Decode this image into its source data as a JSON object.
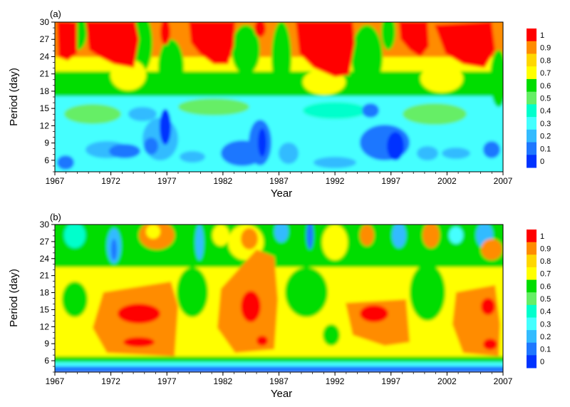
{
  "chart_data": [
    {
      "type": "heatmap",
      "panel_label": "(a)",
      "xlabel": "Year",
      "ylabel": "Period (day)",
      "xlim": [
        1967,
        2007
      ],
      "ylim": [
        4,
        30
      ],
      "x_ticks": [
        "1967",
        "1972",
        "1977",
        "1982",
        "1987",
        "1992",
        "1997",
        "2002",
        "2007"
      ],
      "y_ticks": [
        "6",
        "9",
        "12",
        "15",
        "18",
        "21",
        "24",
        "27",
        "30"
      ],
      "data_start_year": 1968,
      "data_end_year": 2006,
      "grid": false,
      "colorbar": {
        "labels": [
          "1",
          "0.9",
          "0.8",
          "0.7",
          "0.6",
          "0.5",
          "0.4",
          "0.3",
          "0.2",
          "0.1",
          "0"
        ],
        "colors": [
          "#ff0000",
          "#ff8c00",
          "#ffd700",
          "#ffff00",
          "#00dd00",
          "#66ee66",
          "#00ffcc",
          "#44ffff",
          "#33bbff",
          "#1f77ff",
          "#0033ff"
        ]
      },
      "note_values": "coherence regions read approximately",
      "regions": [
        {
          "x": [
            1968,
            1970
          ],
          "y": [
            22,
            30
          ],
          "value": 1
        },
        {
          "x": [
            1971,
            1975
          ],
          "y": [
            21,
            30
          ],
          "value": 1
        },
        {
          "x": [
            1979,
            1984
          ],
          "y": [
            24,
            30
          ],
          "value": 1
        },
        {
          "x": [
            1989,
            1993
          ],
          "y": [
            22,
            30
          ],
          "value": 1
        },
        {
          "x": [
            1998,
            2000
          ],
          "y": [
            23,
            30
          ],
          "value": 1
        },
        {
          "x": [
            2001,
            2006
          ],
          "y": [
            23,
            30
          ],
          "value": 1
        },
        {
          "x": [
            1968,
            2006
          ],
          "y": [
            16,
            22
          ],
          "value": 0.7
        },
        {
          "x": [
            1968,
            2006
          ],
          "y": [
            10,
            16
          ],
          "value": 0.4
        },
        {
          "x": [
            1972,
            1976
          ],
          "y": [
            5,
            10
          ],
          "value": 0.1
        },
        {
          "x": [
            1984,
            1988
          ],
          "y": [
            5,
            11
          ],
          "value": 0.1
        },
        {
          "x": [
            1995,
            1999
          ],
          "y": [
            5,
            11
          ],
          "value": 0.1
        }
      ]
    },
    {
      "type": "heatmap",
      "panel_label": "(b)",
      "xlabel": "Year",
      "ylabel": "Period (day)",
      "xlim": [
        1967,
        2007
      ],
      "ylim": [
        4,
        30
      ],
      "x_ticks": [
        "1967",
        "1972",
        "1977",
        "1982",
        "1987",
        "1992",
        "1997",
        "2002",
        "2007"
      ],
      "y_ticks": [
        "6",
        "9",
        "12",
        "15",
        "18",
        "21",
        "24",
        "27",
        "30"
      ],
      "data_start_year": 1968,
      "data_end_year": 2006,
      "grid": false,
      "colorbar": {
        "labels": [
          "1",
          "0.9",
          "0.8",
          "0.7",
          "0.6",
          "0.5",
          "0.4",
          "0.3",
          "0.2",
          "0.1",
          "0"
        ],
        "colors": [
          "#ff0000",
          "#ff8c00",
          "#ffd700",
          "#ffff00",
          "#00dd00",
          "#66ee66",
          "#00ffcc",
          "#44ffff",
          "#33bbff",
          "#1f77ff",
          "#0033ff"
        ]
      },
      "note_values": "coherence regions read approximately",
      "regions": [
        {
          "x": [
            1973,
            1977
          ],
          "y": [
            8,
            15
          ],
          "value": 1
        },
        {
          "x": [
            1985,
            1987
          ],
          "y": [
            9,
            18
          ],
          "value": 1
        },
        {
          "x": [
            1994,
            1997
          ],
          "y": [
            11,
            15
          ],
          "value": 1
        },
        {
          "x": [
            2004,
            2006
          ],
          "y": [
            8,
            14
          ],
          "value": 1
        },
        {
          "x": [
            1968,
            2006
          ],
          "y": [
            7,
            20
          ],
          "value": 0.8
        },
        {
          "x": [
            1968,
            2006
          ],
          "y": [
            20,
            30
          ],
          "value": 0.5
        },
        {
          "x": [
            1968,
            2006
          ],
          "y": [
            4,
            6
          ],
          "value": 0.2
        }
      ]
    }
  ]
}
